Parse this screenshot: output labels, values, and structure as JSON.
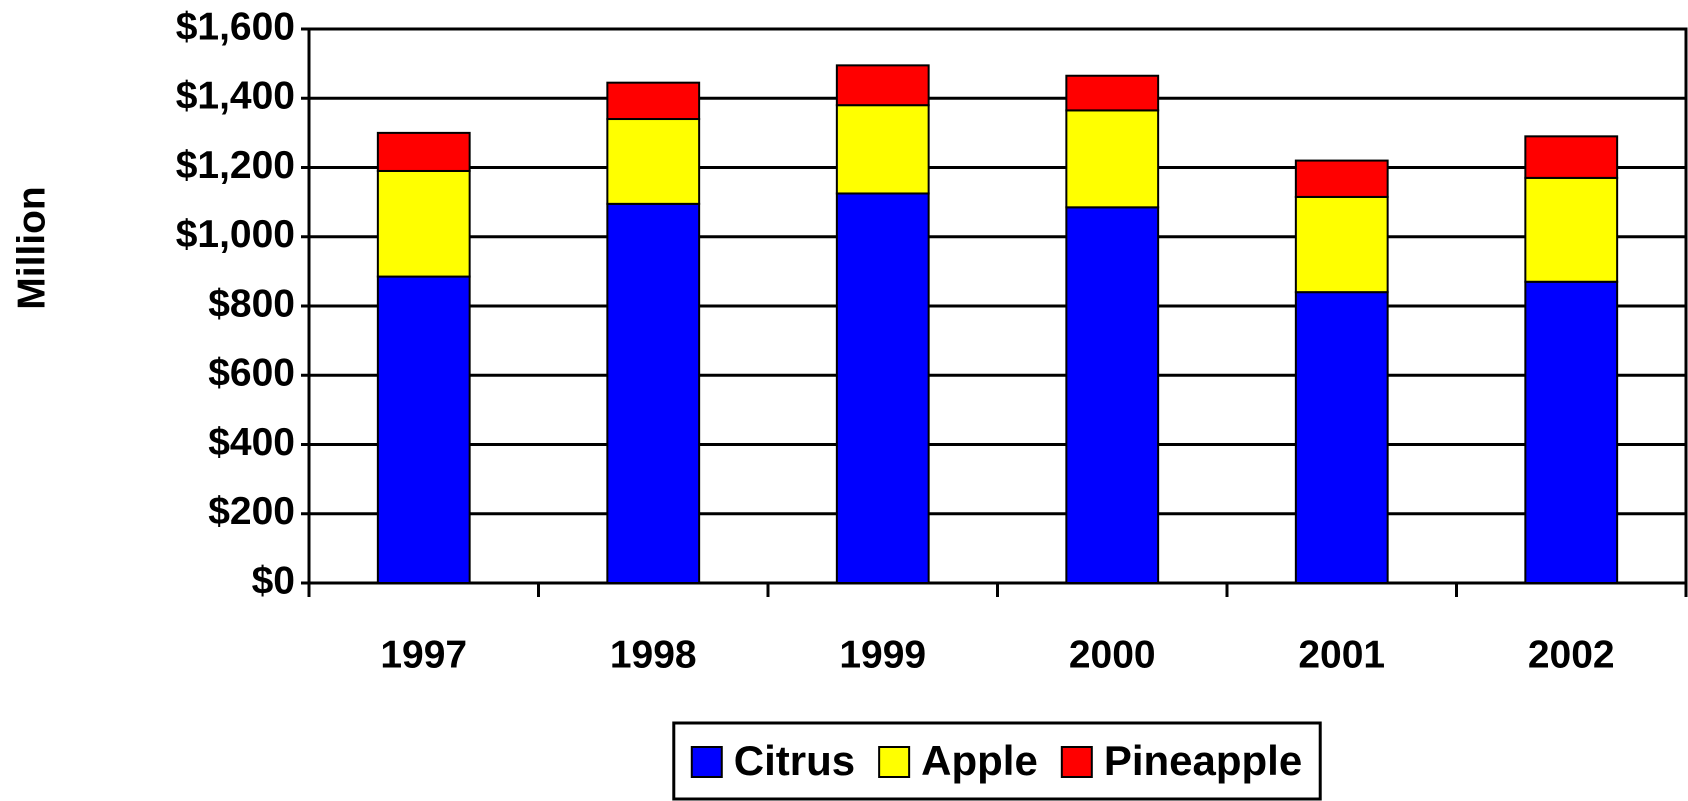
{
  "chart_data": {
    "type": "stacked_bar",
    "y_label": "Million",
    "categories": [
      "1997",
      "1998",
      "1999",
      "2000",
      "2001",
      "2002"
    ],
    "series": [
      {
        "name": "Citrus",
        "color": "#0000ff",
        "values": [
          885,
          1095,
          1125,
          1085,
          840,
          870
        ]
      },
      {
        "name": "Apple",
        "color": "#ffff00",
        "values": [
          305,
          245,
          255,
          280,
          275,
          300
        ]
      },
      {
        "name": "Pineapple",
        "color": "#ff0000",
        "values": [
          110,
          105,
          115,
          100,
          105,
          120
        ]
      }
    ],
    "ylim": [
      0,
      1600
    ],
    "yticks": [
      {
        "value": 0,
        "label": "$0"
      },
      {
        "value": 200,
        "label": "$200"
      },
      {
        "value": 400,
        "label": "$400"
      },
      {
        "value": 600,
        "label": "$600"
      },
      {
        "value": 800,
        "label": "$800"
      },
      {
        "value": 1000,
        "label": "$1,000"
      },
      {
        "value": 1200,
        "label": "$1,200"
      },
      {
        "value": 1400,
        "label": "$1,400"
      },
      {
        "value": 1600,
        "label": "$1,600"
      }
    ],
    "grid": true,
    "legend": "bottom"
  }
}
